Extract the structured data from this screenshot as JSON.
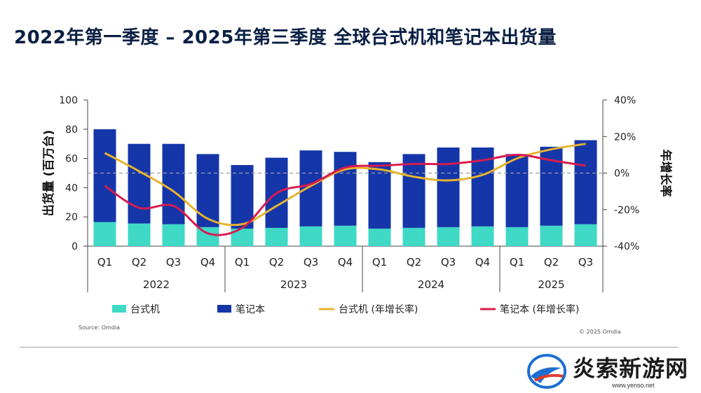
{
  "page_title": "2022年第一季度 – 2025年第三季度 全球台式机和笔记本出货量",
  "source": "Source: Omdia",
  "copyright": "© 2025 Omdia",
  "watermark": {
    "text": "炎索新游网",
    "url": "www.yenso.net"
  },
  "chart_data": {
    "type": "bar",
    "stacked": true,
    "categories": [
      "Q1",
      "Q2",
      "Q3",
      "Q4",
      "Q1",
      "Q2",
      "Q3",
      "Q4",
      "Q1",
      "Q2",
      "Q3",
      "Q4",
      "Q1",
      "Q2",
      "Q3"
    ],
    "year_groups": [
      {
        "label": "2022",
        "count": 4
      },
      {
        "label": "2023",
        "count": 4
      },
      {
        "label": "2024",
        "count": 4
      },
      {
        "label": "2025",
        "count": 3
      }
    ],
    "series": [
      {
        "name": "台式机",
        "kind": "bar",
        "axis": "left",
        "color": "#3fd9c6",
        "values": [
          16.5,
          15.5,
          15,
          13,
          12,
          12.5,
          13.5,
          14,
          12,
          12.5,
          13,
          13.5,
          13,
          14,
          15
        ]
      },
      {
        "name": "笔记本",
        "kind": "bar",
        "axis": "left",
        "color": "#1436a8",
        "values": [
          63.5,
          54.5,
          55,
          50,
          43.5,
          48,
          52,
          50.5,
          45.5,
          50.5,
          54.5,
          54,
          50,
          54,
          57.5
        ]
      },
      {
        "name": "台式机 (年增长率)",
        "kind": "line",
        "axis": "right",
        "color": "#e8b32e",
        "values": [
          11,
          1,
          -10,
          -25,
          -28,
          -18,
          -7,
          2,
          2,
          -2,
          -4,
          -1,
          8,
          13,
          16
        ]
      },
      {
        "name": "笔记本 (年增长率)",
        "kind": "line",
        "axis": "right",
        "color": "#d81b50",
        "values": [
          -7,
          -19,
          -18,
          -33,
          -30,
          -11,
          -6,
          3,
          4,
          5,
          5,
          7,
          10,
          7,
          4
        ]
      }
    ],
    "ylabel": "出货量 (百万台)",
    "y2label": "年增长率",
    "ylim": [
      0,
      100
    ],
    "yticks": [
      0,
      20,
      40,
      60,
      80,
      100
    ],
    "y2lim": [
      -40,
      40
    ],
    "y2ticks": [
      "-40%",
      "-20%",
      "0%",
      "20%",
      "40%"
    ],
    "reference_line": 0,
    "legend": [
      "台式机",
      "笔记本",
      "台式机 (年增长率)",
      "笔记本 (年增长率)"
    ],
    "legend_position": "bottom"
  }
}
